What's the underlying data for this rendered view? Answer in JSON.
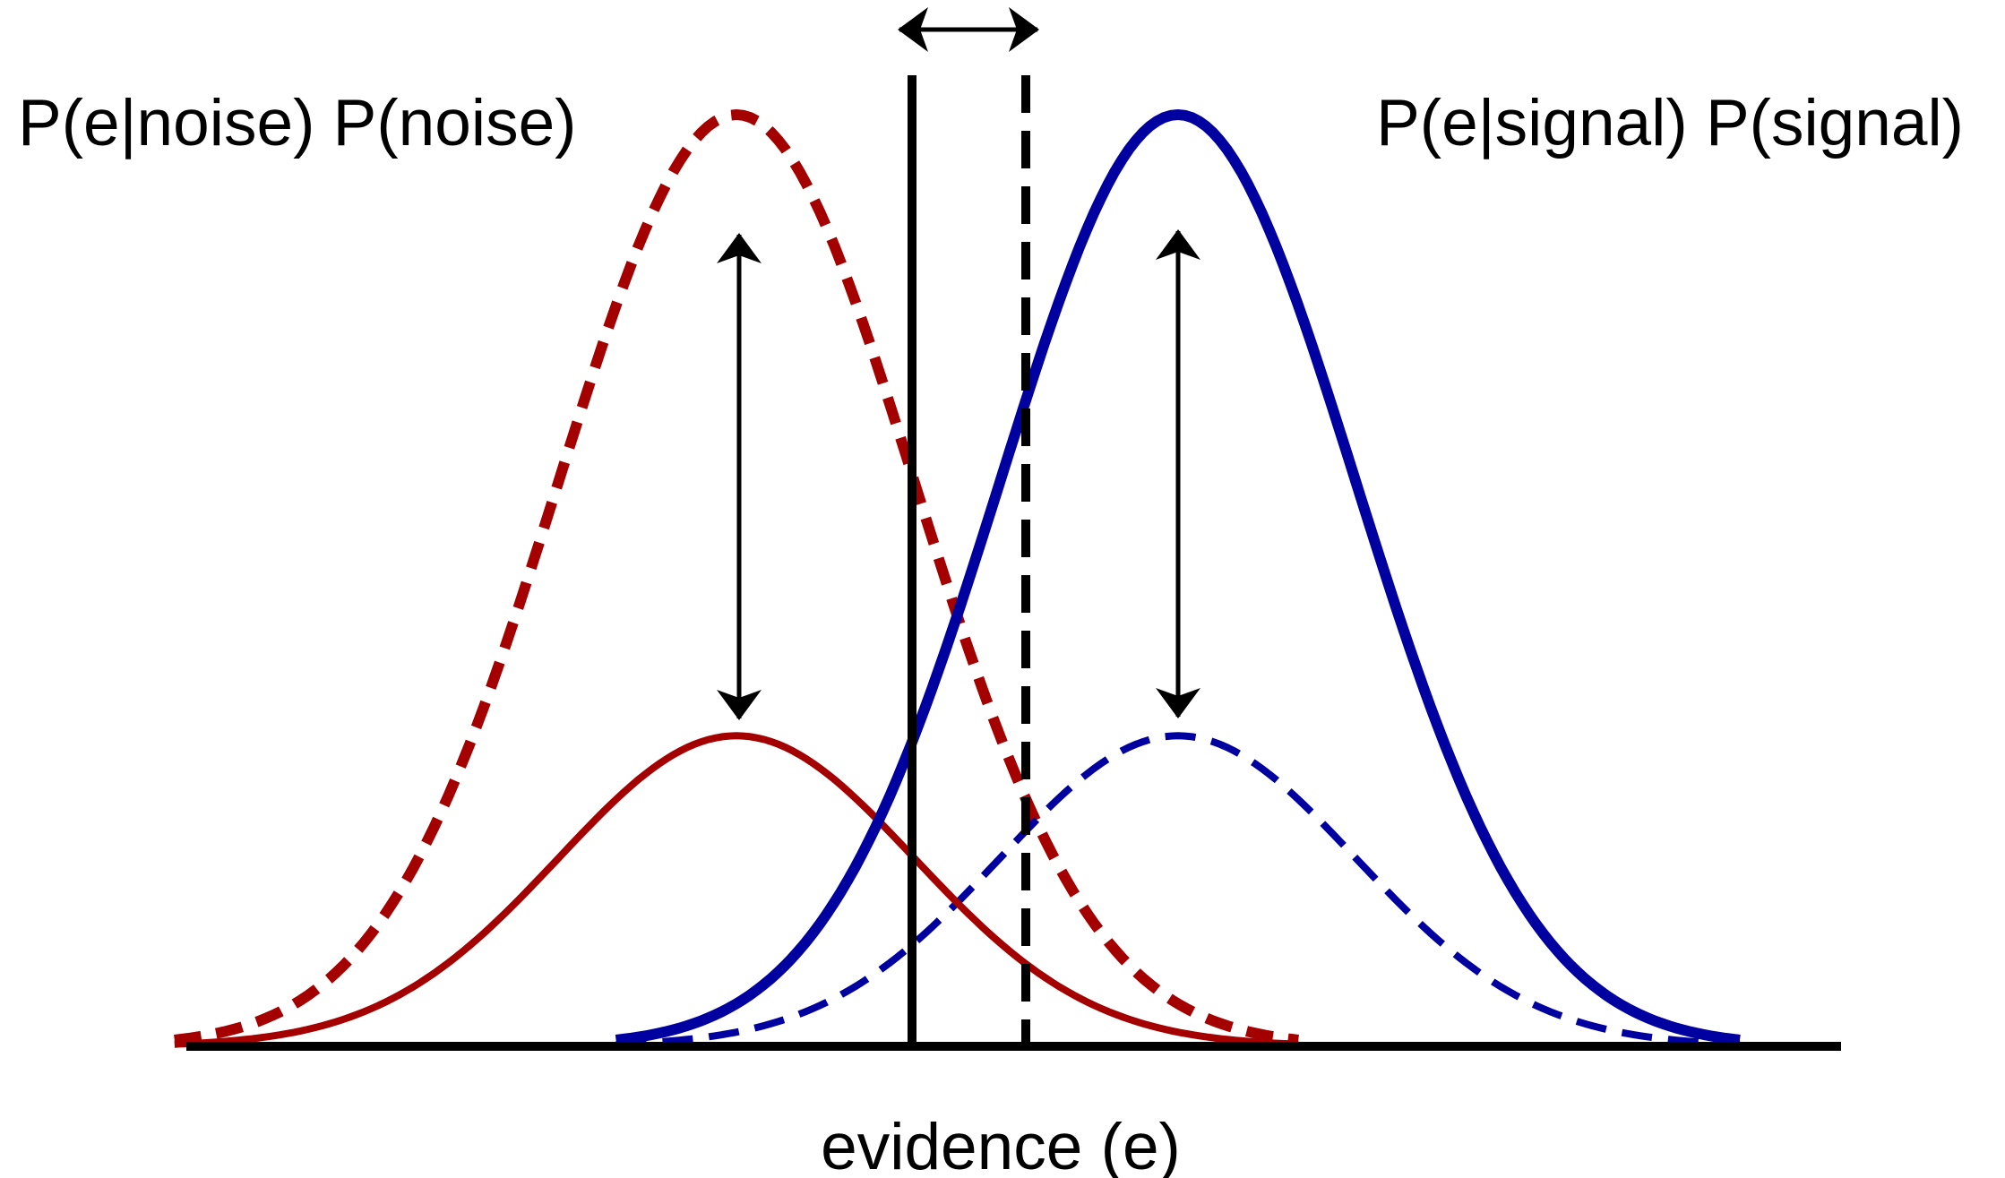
{
  "labels": {
    "noise_prior": "P(e|noise) P(noise)",
    "signal_prior": "P(e|signal) P(signal)",
    "x_axis": "evidence (e)"
  },
  "colors": {
    "noise": "#a40000",
    "signal": "#0000a0",
    "ink": "#000000"
  },
  "curves": [
    {
      "id": "noise-solid",
      "color_key": "noise",
      "style": "solid",
      "mean": 0,
      "sd": 1,
      "amplitude": 0.25
    },
    {
      "id": "noise-dashed",
      "color_key": "noise",
      "style": "dashed",
      "mean": 0,
      "sd": 1,
      "amplitude": 0.75
    },
    {
      "id": "signal-solid",
      "color_key": "signal",
      "style": "solid",
      "mean": 1.54,
      "sd": 1,
      "amplitude": 0.75
    },
    {
      "id": "signal-dashed",
      "color_key": "signal",
      "style": "dashed",
      "mean": 1.54,
      "sd": 1,
      "amplitude": 0.25
    }
  ]
}
